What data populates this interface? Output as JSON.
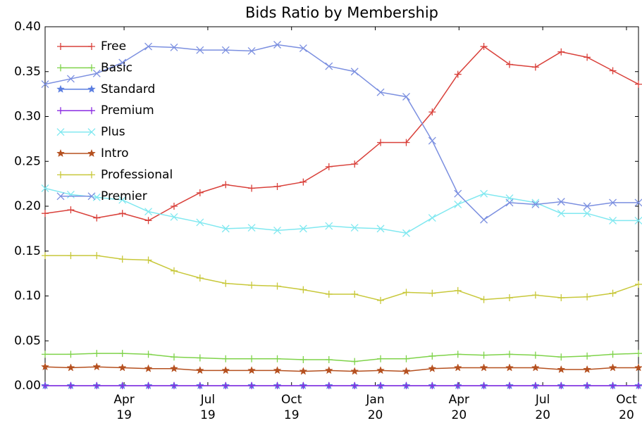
{
  "chart_data": {
    "type": "line",
    "title": "Bids Ratio by Membership",
    "x": [
      1.17,
      2.09,
      3.02,
      3.94,
      4.87,
      5.79,
      6.72,
      7.64,
      8.57,
      9.49,
      10.42,
      11.34,
      12.26,
      13.19,
      14.11,
      15.04,
      15.96,
      16.89,
      17.81,
      18.74,
      19.66,
      20.59,
      21.51,
      22.43
    ],
    "xlim": [
      1.17,
      22.43
    ],
    "xticks": [
      {
        "value": 4,
        "label": [
          "Apr",
          "19"
        ]
      },
      {
        "value": 7,
        "label": [
          "Jul",
          "19"
        ]
      },
      {
        "value": 10,
        "label": [
          "Oct",
          "19"
        ]
      },
      {
        "value": 13,
        "label": [
          "Jan",
          "20"
        ]
      },
      {
        "value": 16,
        "label": [
          "Apr",
          "20"
        ]
      },
      {
        "value": 19,
        "label": [
          "Jul",
          "20"
        ]
      },
      {
        "value": 22,
        "label": [
          "Oct",
          "20"
        ]
      }
    ],
    "ylim": [
      0,
      0.4
    ],
    "yticks": [
      {
        "value": 0,
        "label": "0.00"
      },
      {
        "value": 0.05,
        "label": "0.05"
      },
      {
        "value": 0.1,
        "label": "0.10"
      },
      {
        "value": 0.15,
        "label": "0.15"
      },
      {
        "value": 0.2,
        "label": "0.20"
      },
      {
        "value": 0.25,
        "label": "0.25"
      },
      {
        "value": 0.3,
        "label": "0.30"
      },
      {
        "value": 0.35,
        "label": "0.35"
      },
      {
        "value": 0.4,
        "label": "0.40"
      }
    ],
    "legend": "upper left",
    "series": [
      {
        "name": "Free",
        "color": "#d9403a",
        "marker": "plus",
        "values": [
          0.192,
          0.196,
          0.187,
          0.192,
          0.184,
          0.2,
          0.215,
          0.224,
          0.22,
          0.222,
          0.227,
          0.244,
          0.247,
          0.271,
          0.271,
          0.305,
          0.347,
          0.378,
          0.358,
          0.355,
          0.372,
          0.366,
          0.351,
          0.336
        ]
      },
      {
        "name": "Basic",
        "color": "#7fd34a",
        "marker": "plus",
        "values": [
          0.035,
          0.035,
          0.036,
          0.036,
          0.035,
          0.032,
          0.031,
          0.03,
          0.03,
          0.03,
          0.029,
          0.029,
          0.027,
          0.03,
          0.03,
          0.033,
          0.035,
          0.034,
          0.035,
          0.034,
          0.032,
          0.033,
          0.035,
          0.036
        ]
      },
      {
        "name": "Standard",
        "color": "#5a7de0",
        "marker": "star",
        "values": [
          0,
          0,
          0,
          0,
          0,
          0,
          0,
          0,
          0,
          0,
          0,
          0,
          0,
          0,
          0,
          0,
          0,
          0,
          0,
          0,
          0,
          0,
          0,
          0
        ]
      },
      {
        "name": "Premium",
        "color": "#8a2be2",
        "marker": "plus",
        "values": [
          0,
          0,
          0,
          0,
          0,
          0,
          0,
          0,
          0,
          0,
          0,
          0,
          0,
          0,
          0,
          0,
          0,
          0,
          0,
          0,
          0,
          0,
          0,
          0
        ]
      },
      {
        "name": "Plus",
        "color": "#80e8f0",
        "marker": "cross",
        "values": [
          0.22,
          0.213,
          0.21,
          0.207,
          0.194,
          0.188,
          0.182,
          0.175,
          0.176,
          0.173,
          0.175,
          0.178,
          0.176,
          0.175,
          0.17,
          0.187,
          0.202,
          0.214,
          0.209,
          0.204,
          0.192,
          0.192,
          0.184,
          0.184
        ]
      },
      {
        "name": "Intro",
        "color": "#b5501f",
        "marker": "star",
        "values": [
          0.021,
          0.02,
          0.021,
          0.02,
          0.019,
          0.019,
          0.017,
          0.017,
          0.017,
          0.017,
          0.016,
          0.017,
          0.016,
          0.017,
          0.016,
          0.019,
          0.02,
          0.02,
          0.02,
          0.02,
          0.018,
          0.018,
          0.02,
          0.02
        ]
      },
      {
        "name": "Professional",
        "color": "#c8c83a",
        "marker": "plus",
        "values": [
          0.145,
          0.145,
          0.145,
          0.141,
          0.14,
          0.128,
          0.12,
          0.114,
          0.112,
          0.111,
          0.107,
          0.102,
          0.102,
          0.095,
          0.104,
          0.103,
          0.106,
          0.096,
          0.098,
          0.101,
          0.098,
          0.099,
          0.103,
          0.113
        ]
      },
      {
        "name": "Premier",
        "color": "#7b8fe0",
        "marker": "cross",
        "values": [
          0.336,
          0.342,
          0.348,
          0.36,
          0.378,
          0.377,
          0.374,
          0.374,
          0.373,
          0.38,
          0.376,
          0.356,
          0.35,
          0.327,
          0.322,
          0.273,
          0.214,
          0.185,
          0.204,
          0.202,
          0.205,
          0.2,
          0.204,
          0.204
        ]
      }
    ]
  }
}
